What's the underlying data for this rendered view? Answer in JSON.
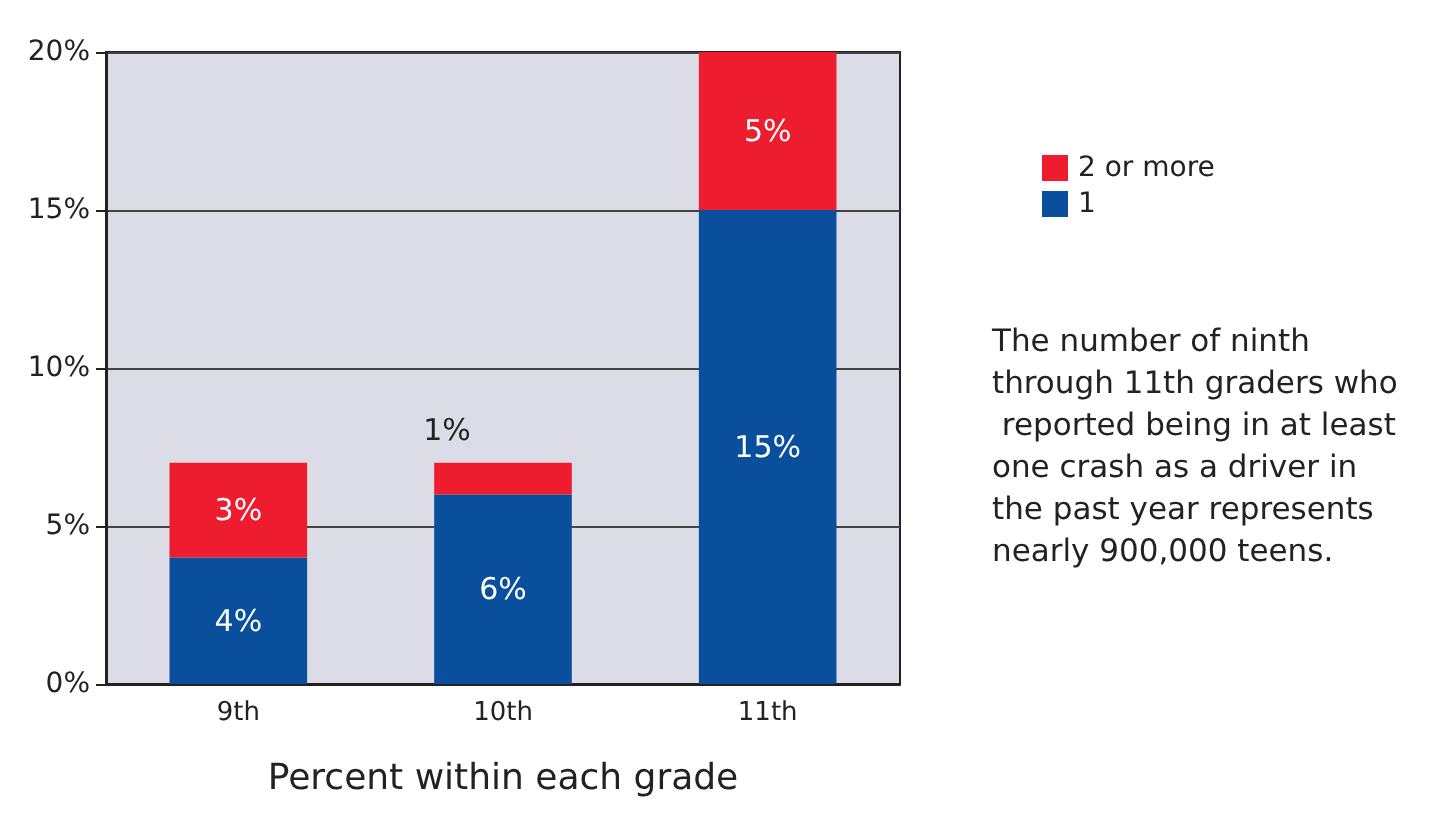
{
  "chart_data": {
    "type": "bar",
    "stacked": true,
    "xlabel": "Percent within each grade",
    "categories": [
      "9th",
      "10th",
      "11th"
    ],
    "series": [
      {
        "name": "1",
        "color": "#0a4f9c",
        "values": [
          4,
          6,
          15
        ],
        "value_labels": [
          "4%",
          "6%",
          "15%"
        ]
      },
      {
        "name": "2 or more",
        "color": "#ed1c2e",
        "values": [
          3,
          1,
          5
        ],
        "value_labels": [
          "3%",
          "1%",
          "5%"
        ]
      }
    ],
    "ylim": [
      0,
      20
    ],
    "yticks": [
      {
        "value": 0,
        "label": "0%"
      },
      {
        "value": 5,
        "label": "5%"
      },
      {
        "value": 10,
        "label": "10%"
      },
      {
        "value": 15,
        "label": "15%"
      },
      {
        "value": 20,
        "label": "20%"
      }
    ],
    "grid": "y",
    "legend": "right",
    "annotations": [
      "The number of ninth through 11th graders who reported being in at least one crash as a driver in the past year represents nearly 900,000 teens."
    ]
  }
}
